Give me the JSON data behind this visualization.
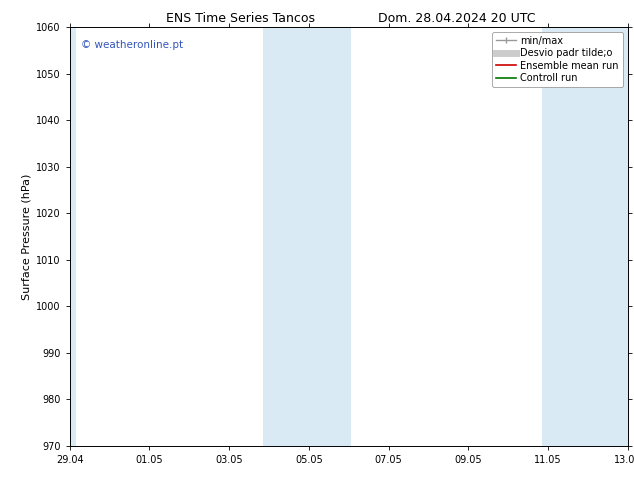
{
  "title_left": "ENS Time Series Tancos",
  "title_right": "Dom. 28.04.2024 20 UTC",
  "ylabel": "Surface Pressure (hPa)",
  "ylim": [
    970,
    1060
  ],
  "yticks": [
    970,
    980,
    990,
    1000,
    1010,
    1020,
    1030,
    1040,
    1050,
    1060
  ],
  "xtick_labels": [
    "29.04",
    "01.05",
    "03.05",
    "05.05",
    "07.05",
    "09.05",
    "11.05",
    "13.05"
  ],
  "xtick_positions": [
    0,
    2,
    4,
    6,
    8,
    10,
    12,
    14
  ],
  "x_min": 0,
  "x_max": 14.0,
  "shaded_bands": [
    {
      "x_start": -0.15,
      "x_end": 0.15
    },
    {
      "x_start": 4.85,
      "x_end": 7.05
    },
    {
      "x_start": 11.85,
      "x_end": 14.15
    }
  ],
  "shaded_color": "#daeaf5",
  "watermark_text": "© weatheronline.pt",
  "watermark_color": "#3355bb",
  "legend_items": [
    {
      "label": "min/max"
    },
    {
      "label": "Desvio padr tilde;o"
    },
    {
      "label": "Ensemble mean run"
    },
    {
      "label": "Controll run"
    }
  ],
  "legend_colors": [
    "#999999",
    "#cccccc",
    "#cc0000",
    "#007700"
  ],
  "background_color": "#ffffff",
  "title_fontsize": 9,
  "tick_fontsize": 7,
  "ylabel_fontsize": 8,
  "legend_fontsize": 7
}
